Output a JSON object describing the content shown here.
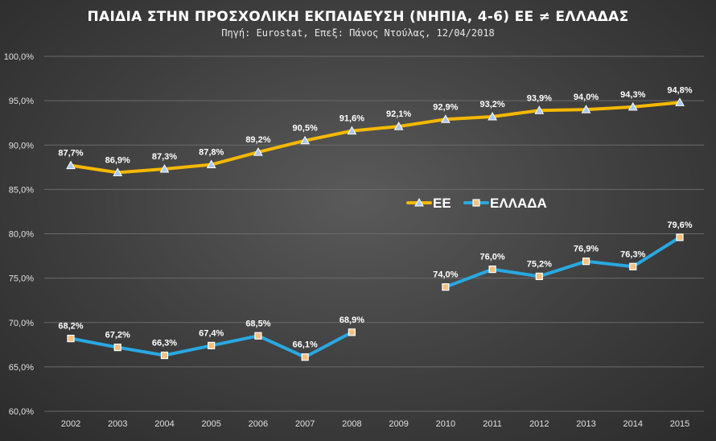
{
  "chart_data": {
    "type": "line",
    "title": "ΠΑΙΔΙΑ ΣΤΗΝ ΠΡΟΣΧΟΛΙΚΗ ΕΚΠΑΙΔΕΥΣΗ (ΝΗΠΙΑ, 4-6) ΕΕ ≠ ΕΛΛΑΔΑΣ",
    "subtitle": "Πηγή: Eurostat, Επεξ: Πάνος Ντούλας, 12/04/2018",
    "categories": [
      "2002",
      "2003",
      "2004",
      "2005",
      "2006",
      "2007",
      "2008",
      "2009",
      "2010",
      "2011",
      "2012",
      "2013",
      "2014",
      "2015"
    ],
    "ylim": [
      60,
      100
    ],
    "yticks": [
      60,
      65,
      70,
      75,
      80,
      85,
      90,
      95,
      100
    ],
    "ytick_labels": [
      "60,0%",
      "65,0%",
      "70,0%",
      "75,0%",
      "80,0%",
      "85,0%",
      "90,0%",
      "95,0%",
      "100,0%"
    ],
    "grid": true,
    "legend_position": "middle-right",
    "series": [
      {
        "name": "ΕΕ",
        "color": "#f5b800",
        "marker_color": "#a8c8f0",
        "marker": "triangle",
        "values": [
          87.7,
          86.9,
          87.3,
          87.8,
          89.2,
          90.5,
          91.6,
          92.1,
          92.9,
          93.2,
          93.9,
          94.0,
          94.3,
          94.8
        ],
        "labels": [
          "87,7%",
          "86,9%",
          "87,3%",
          "87,8%",
          "89,2%",
          "90,5%",
          "91,6%",
          "92,1%",
          "92,9%",
          "93,2%",
          "93,9%",
          "94,0%",
          "94,3%",
          "94,8%"
        ]
      },
      {
        "name": "ΕΛΛΑΔΑ",
        "color": "#29a8e0",
        "marker_color": "#f5c080",
        "marker": "square",
        "values": [
          68.2,
          67.2,
          66.3,
          67.4,
          68.5,
          66.1,
          68.9,
          null,
          74.0,
          76.0,
          75.2,
          76.9,
          76.3,
          79.6
        ],
        "labels": [
          "68,2%",
          "67,2%",
          "66,3%",
          "67,4%",
          "68,5%",
          "66,1%",
          "68,9%",
          "",
          "74,0%",
          "76,0%",
          "75,2%",
          "76,9%",
          "76,3%",
          "79,6%"
        ]
      }
    ]
  }
}
